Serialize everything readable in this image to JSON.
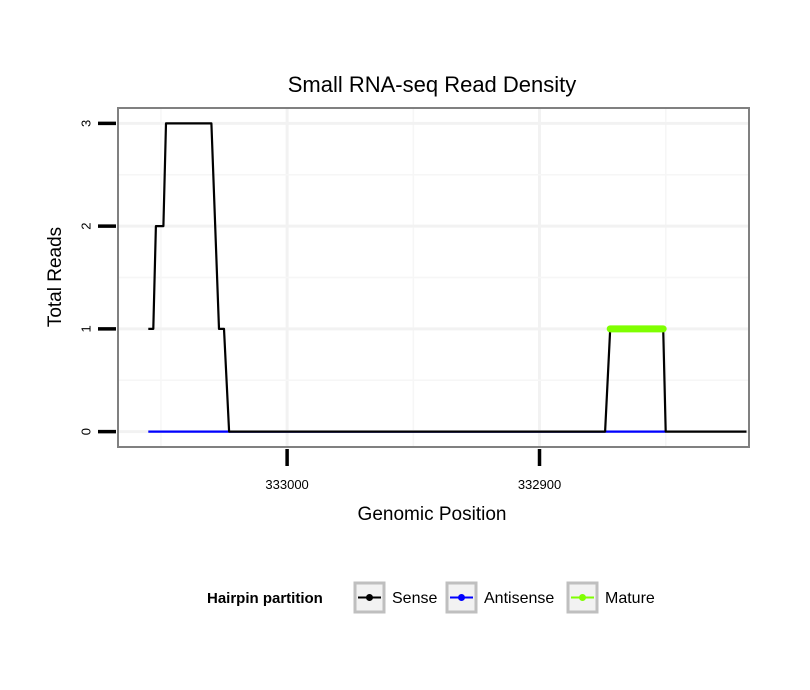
{
  "chart_data": {
    "type": "line",
    "title": "Small RNA-seq Read Density",
    "xlabel": "Genomic Position",
    "ylabel": "Total Reads",
    "x_reversed": true,
    "xlim": [
      333067,
      332817
    ],
    "ylim": [
      -0.15,
      3.15
    ],
    "x_ticks": [
      333000,
      332900
    ],
    "x_tick_labels": [
      "333000",
      "332900"
    ],
    "y_ticks": [
      0,
      1,
      2,
      3
    ],
    "y_tick_labels": [
      "0",
      "1",
      "2",
      "3"
    ],
    "grid": true,
    "legend": {
      "title": "Hairpin partition",
      "position": "bottom",
      "entries": [
        "Sense",
        "Antisense",
        "Mature"
      ]
    },
    "series": [
      {
        "name": "Sense",
        "color": "#000000",
        "points": [
          [
            333055,
            1
          ],
          [
            333053,
            1
          ],
          [
            333052,
            2
          ],
          [
            333049,
            2
          ],
          [
            333048,
            3
          ],
          [
            333030,
            3
          ],
          [
            333027,
            1
          ],
          [
            333025,
            1
          ],
          [
            333023,
            0
          ],
          [
            332874,
            0
          ],
          [
            332872,
            1
          ],
          [
            332851,
            1
          ],
          [
            332850,
            0
          ],
          [
            332818,
            0
          ]
        ]
      },
      {
        "name": "Antisense",
        "color": "#0000ff",
        "points": [
          [
            333055,
            0
          ],
          [
            333023,
            0
          ],
          [
            332873,
            0
          ],
          [
            332850,
            0
          ]
        ]
      },
      {
        "name": "Mature",
        "color": "#7fff00",
        "points": [
          [
            332872,
            1
          ],
          [
            332851,
            1
          ]
        ]
      }
    ]
  }
}
